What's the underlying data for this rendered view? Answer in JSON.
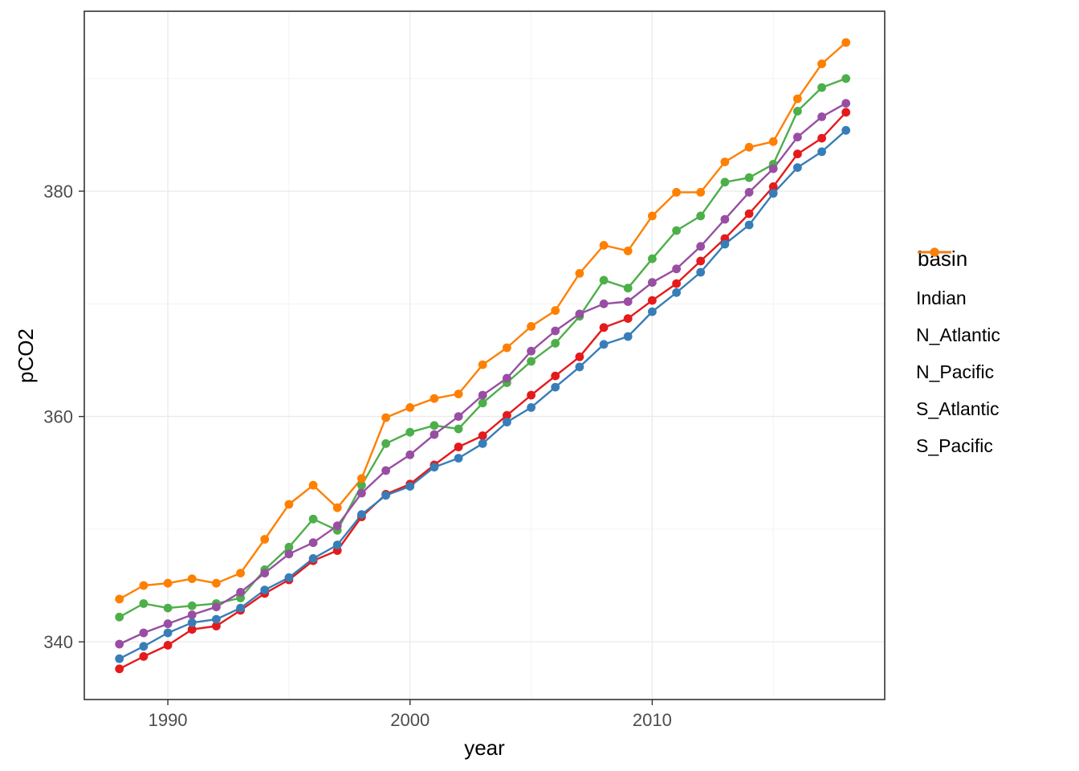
{
  "figure": {
    "xlabel": "year",
    "ylabel": "pCO2",
    "legend_title": "basin"
  },
  "chart_data": {
    "type": "line",
    "title": "",
    "xlabel": "year",
    "ylabel": "pCO2",
    "legend": {
      "title": "basin",
      "position": "right"
    },
    "grid": true,
    "x": [
      1988,
      1989,
      1990,
      1991,
      1992,
      1993,
      1994,
      1995,
      1996,
      1997,
      1998,
      1999,
      2000,
      2001,
      2002,
      2003,
      2004,
      2005,
      2006,
      2007,
      2008,
      2009,
      2010,
      2011,
      2012,
      2013,
      2014,
      2015,
      2016,
      2017,
      2018
    ],
    "series": [
      {
        "name": "Indian",
        "color": "#E41A1C",
        "values": [
          337.6,
          338.7,
          339.7,
          341.1,
          341.4,
          342.8,
          344.3,
          345.5,
          347.2,
          348.1,
          351.1,
          353.1,
          354.0,
          355.7,
          357.3,
          358.3,
          360.1,
          361.9,
          363.6,
          365.3,
          367.9,
          368.7,
          370.3,
          371.8,
          373.8,
          375.8,
          378.0,
          380.4,
          383.3,
          384.7,
          387.0
        ]
      },
      {
        "name": "N_Atlantic",
        "color": "#377EB8",
        "values": [
          338.5,
          339.6,
          340.8,
          341.7,
          342.0,
          343.0,
          344.6,
          345.7,
          347.4,
          348.6,
          351.3,
          353.0,
          353.8,
          355.5,
          356.3,
          357.6,
          359.5,
          360.8,
          362.6,
          364.4,
          366.4,
          367.1,
          369.3,
          371.0,
          372.8,
          375.3,
          377.0,
          379.8,
          382.1,
          383.5,
          385.4
        ]
      },
      {
        "name": "N_Pacific",
        "color": "#4DAF4A",
        "values": [
          342.2,
          343.4,
          343.0,
          343.2,
          343.4,
          343.9,
          346.4,
          348.4,
          350.9,
          349.9,
          353.9,
          357.6,
          358.6,
          359.2,
          358.9,
          361.2,
          363.0,
          364.9,
          366.5,
          368.9,
          372.1,
          371.4,
          374.0,
          376.5,
          377.8,
          380.8,
          381.2,
          382.4,
          387.1,
          389.2,
          390.0
        ]
      },
      {
        "name": "S_Atlantic",
        "color": "#984EA3",
        "values": [
          339.8,
          340.8,
          341.6,
          342.4,
          343.1,
          344.4,
          346.1,
          347.8,
          348.8,
          350.3,
          353.2,
          355.2,
          356.6,
          358.4,
          360.0,
          361.9,
          363.4,
          365.8,
          367.6,
          369.1,
          370.0,
          370.2,
          371.9,
          373.1,
          375.1,
          377.5,
          379.9,
          382.0,
          384.8,
          386.6,
          387.8
        ]
      },
      {
        "name": "S_Pacific",
        "color": "#FF7F00",
        "values": [
          343.8,
          345.0,
          345.2,
          345.6,
          345.2,
          346.1,
          349.1,
          352.2,
          353.9,
          351.9,
          354.5,
          359.9,
          360.8,
          361.6,
          362.0,
          364.6,
          366.1,
          368.0,
          369.4,
          372.7,
          375.2,
          374.7,
          377.8,
          379.9,
          379.9,
          382.6,
          383.9,
          384.4,
          388.2,
          391.3,
          393.2
        ]
      }
    ],
    "x_ticks": {
      "major": [
        1990,
        2000,
        2010
      ],
      "minor": [
        1985,
        1995,
        2005,
        2015
      ]
    },
    "y_ticks": {
      "major": [
        340,
        360,
        380
      ],
      "minor": [
        330,
        350,
        370,
        390
      ]
    },
    "xlim": [
      1986.55,
      2019.6
    ],
    "ylim": [
      334.88,
      395.97
    ],
    "theme": {
      "background": "#FFFFFF",
      "panel_border": "#333333",
      "grid_major": "#EBEBEB",
      "grid_minor": "#F3F3F3",
      "tick_color": "#333333",
      "tick_label_color": "#4D4D4D",
      "text_color": "#000000"
    }
  }
}
